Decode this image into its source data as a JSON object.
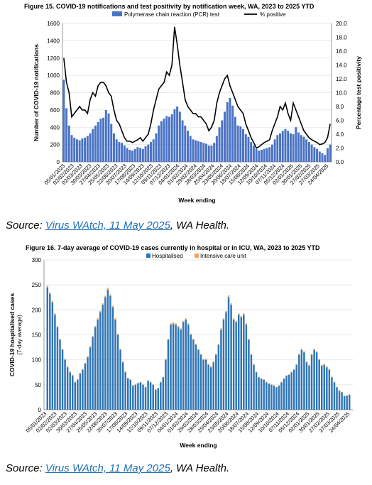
{
  "figures": [
    {
      "title": "Figure 15. COVID-19 notifications and test positivity by notification week, WA, 2023 to 2025 YTD",
      "source": {
        "prefix": "Source: ",
        "link_text": "Virus WAtch, 11 May 2025",
        "suffix": ", WA Health."
      }
    },
    {
      "title": "Figure 16. 7-day average of COVID-19 cases currently in hospital or in ICU, WA, 2023 to 2025 YTD",
      "source": {
        "prefix": "Source: ",
        "link_text": "Virus WAtch, 11 May 2025",
        "suffix": ", WA Health."
      }
    }
  ],
  "colors": {
    "pcr": "#4a73c4",
    "positive_line": "#000000",
    "hospitalised": "#2e75b6",
    "icu": "#f4a460",
    "grid": "#e3e3e3",
    "axis": "#7f7f7f"
  },
  "chart_data": [
    {
      "type": "bar",
      "title": "Figure 15. COVID-19 notifications and test positivity by notification week, WA, 2023 to 2025 YTD",
      "xlabel": "Week ending",
      "ylabel": "Number of COVID-19 notifications",
      "ylabel_right": "Percentage test positivity",
      "ylim": [
        0,
        1600
      ],
      "yticks": [
        "0",
        "200",
        "400",
        "600",
        "800",
        "1000",
        "1200",
        "1400",
        "1600"
      ],
      "ylim_right": [
        0,
        20
      ],
      "yticks_right": [
        "0.0",
        "2.0",
        "4.0",
        "6.0",
        "8.0",
        "10.0",
        "12.0",
        "14.0",
        "16.0",
        "18.0",
        "20.0"
      ],
      "xticks": [
        "05/01/2023",
        "02/02/2023",
        "02/03/2023",
        "30/03/2023",
        "27/04/2023",
        "25/05/2023",
        "22/06/2023",
        "20/07/2023",
        "17/08/2023",
        "14/09/2023",
        "12/10/2023",
        "09/11/2023",
        "07/12/2023",
        "04/01/2024",
        "01/02/2024",
        "29/02/2024",
        "28/03/2024",
        "25/04/2024",
        "23/05/2024",
        "20/06/2024",
        "18/07/2024",
        "15/08/2024",
        "12/09/2024",
        "10/10/2024",
        "07/11/2024",
        "05/12/2024",
        "02/01/2025",
        "30/01/2025",
        "27/02/2025",
        "27/03/2025",
        "24/04/2025"
      ],
      "grid": true,
      "legend_position": "top",
      "series": [
        {
          "name": "Polymerase chain reaction (PCR) test",
          "type": "bar",
          "axis": "left",
          "values": [
            950,
            620,
            420,
            310,
            280,
            260,
            250,
            270,
            280,
            300,
            330,
            380,
            420,
            460,
            500,
            510,
            600,
            560,
            440,
            330,
            260,
            230,
            220,
            190,
            160,
            140,
            130,
            150,
            170,
            160,
            150,
            180,
            200,
            230,
            260,
            330,
            420,
            470,
            500,
            530,
            520,
            550,
            610,
            640,
            580,
            480,
            420,
            360,
            300,
            260,
            250,
            240,
            230,
            220,
            210,
            190,
            190,
            220,
            300,
            400,
            480,
            580,
            690,
            740,
            650,
            520,
            420,
            410,
            380,
            320,
            290,
            230,
            190,
            150,
            130,
            140,
            150,
            160,
            170,
            200,
            260,
            310,
            330,
            360,
            380,
            360,
            330,
            320,
            400,
            340,
            310,
            290,
            260,
            230,
            200,
            170,
            150,
            120,
            100,
            80,
            160,
            200
          ]
        },
        {
          "name": "% positive",
          "type": "line",
          "axis": "right",
          "values": [
            15,
            11.5,
            10,
            6.5,
            7,
            7.5,
            8,
            7.5,
            7.5,
            7,
            9,
            10,
            9.5,
            11,
            11.5,
            11.5,
            11,
            10,
            9.5,
            7.5,
            6,
            5.5,
            4.5,
            3.5,
            3,
            3,
            2.8,
            3,
            3.2,
            3.5,
            3,
            3.5,
            4,
            5.5,
            7.5,
            9,
            10.5,
            11,
            11.5,
            13,
            12.5,
            14,
            19.5,
            17,
            14,
            11.5,
            9,
            8,
            7.5,
            7,
            7,
            6.5,
            6.5,
            6,
            5.5,
            4.5,
            5,
            6,
            8.5,
            10,
            11,
            12,
            12.5,
            11,
            10,
            9,
            8,
            7.5,
            7,
            5.5,
            4.5,
            3.5,
            2.8,
            2,
            2.2,
            2.5,
            2.8,
            3,
            3.2,
            4.5,
            5.5,
            6.5,
            8,
            7.5,
            8.5,
            7,
            6,
            8.5,
            7.5,
            6.5,
            5.5,
            4.5,
            4,
            3.5,
            3.2,
            3,
            2.8,
            2.5,
            2.6,
            2.8,
            3.5,
            5.5
          ]
        }
      ]
    },
    {
      "type": "bar",
      "title": "Figure 16. 7-day average of COVID-19 cases currently in hospital or in ICU, WA, 2023 to 2025 YTD",
      "xlabel": "Week ending",
      "ylabel": "COVID-19 hospitalised cases (7-day average)",
      "ylim": [
        0,
        300
      ],
      "yticks": [
        "0",
        "50",
        "100",
        "150",
        "200",
        "250",
        "300"
      ],
      "xticks": [
        "05/01/2023",
        "02/02/2023",
        "02/03/2023",
        "30/03/2023",
        "27/04/2023",
        "25/05/2023",
        "22/06/2023",
        "20/07/2023",
        "17/08/2023",
        "14/09/2023",
        "12/10/2023",
        "09/11/2023",
        "07/12/2023",
        "04/01/2024",
        "01/02/2024",
        "29/02/2024",
        "28/03/2024",
        "25/04/2024",
        "23/05/2024",
        "20/06/2024",
        "18/07/2024",
        "15/08/2024",
        "12/09/2024",
        "10/10/2024",
        "07/11/2024",
        "05/12/2024",
        "02/01/2025",
        "30/01/2025",
        "27/02/2025",
        "27/03/2025",
        "24/04/2025"
      ],
      "grid": true,
      "legend_position": "top",
      "stacked": true,
      "series": [
        {
          "name": "Hospitalised",
          "values": [
            245,
            232,
            215,
            190,
            165,
            140,
            120,
            100,
            85,
            75,
            68,
            55,
            60,
            72,
            80,
            92,
            105,
            125,
            145,
            165,
            180,
            195,
            210,
            225,
            240,
            228,
            205,
            180,
            150,
            120,
            95,
            75,
            63,
            60,
            48,
            50,
            53,
            55,
            50,
            45,
            58,
            55,
            50,
            40,
            43,
            55,
            65,
            100,
            140,
            170,
            172,
            170,
            165,
            160,
            175,
            180,
            170,
            150,
            140,
            130,
            120,
            110,
            100,
            100,
            90,
            85,
            95,
            110,
            130,
            160,
            180,
            195,
            225,
            210,
            180,
            175,
            190,
            185,
            190,
            170,
            140,
            110,
            90,
            75,
            65,
            62,
            60,
            55,
            52,
            50,
            48,
            45,
            48,
            55,
            62,
            68,
            70,
            75,
            80,
            90,
            110,
            120,
            115,
            95,
            88,
            110,
            120,
            115,
            100,
            88,
            90,
            85,
            80,
            65,
            55,
            45,
            38,
            35,
            27,
            28,
            30
          ]
        },
        {
          "name": "Intensive care unit",
          "values": [
            3,
            3,
            3,
            3,
            2,
            2,
            2,
            2,
            2,
            2,
            2,
            1,
            2,
            2,
            2,
            2,
            2,
            2,
            3,
            3,
            3,
            3,
            3,
            3,
            4,
            3,
            3,
            3,
            2,
            2,
            2,
            2,
            1,
            1,
            1,
            1,
            1,
            1,
            1,
            1,
            1,
            1,
            1,
            1,
            1,
            1,
            1,
            2,
            2,
            3,
            3,
            3,
            3,
            3,
            3,
            3,
            3,
            2,
            2,
            2,
            2,
            2,
            2,
            2,
            2,
            2,
            2,
            2,
            2,
            3,
            3,
            3,
            4,
            3,
            3,
            3,
            3,
            3,
            3,
            3,
            2,
            2,
            2,
            1,
            1,
            1,
            1,
            1,
            1,
            1,
            1,
            1,
            1,
            1,
            1,
            1,
            1,
            1,
            1,
            2,
            2,
            2,
            2,
            2,
            2,
            2,
            2,
            2,
            2,
            2,
            2,
            2,
            2,
            1,
            1,
            1,
            1,
            1,
            1,
            1,
            1
          ]
        }
      ]
    }
  ]
}
